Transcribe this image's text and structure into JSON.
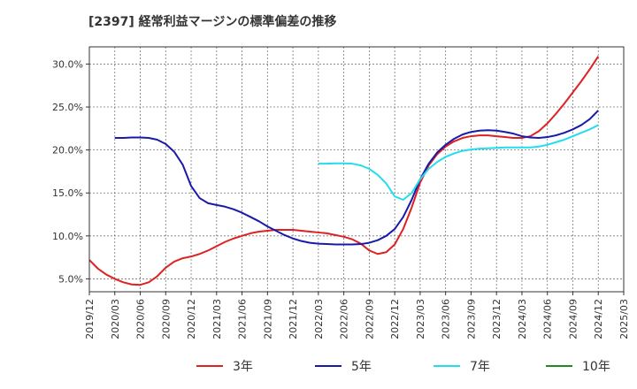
{
  "chart_data": {
    "type": "line",
    "title": "[2397]  経常利益マージンの標準偏差の推移",
    "xlabel": "",
    "ylabel": "",
    "x_range": [
      "2019/12",
      "2025/03"
    ],
    "ylim": [
      3.5,
      32.0
    ],
    "y_ticks": [
      5.0,
      10.0,
      15.0,
      20.0,
      25.0,
      30.0
    ],
    "y_tick_labels": [
      "5.0%",
      "10.0%",
      "15.0%",
      "20.0%",
      "25.0%",
      "30.0%"
    ],
    "x_tick_labels": [
      "2019/12",
      "2020/03",
      "2020/06",
      "2020/09",
      "2020/12",
      "2021/03",
      "2021/06",
      "2021/09",
      "2021/12",
      "2022/03",
      "2022/06",
      "2022/09",
      "2022/12",
      "2023/03",
      "2023/06",
      "2023/09",
      "2023/12",
      "2024/03",
      "2024/06",
      "2024/09",
      "2024/12",
      "2025/03"
    ],
    "grid": true,
    "legend_position": "bottom",
    "series": [
      {
        "name": "3年",
        "color": "#dd2222",
        "points": [
          [
            "2019/12",
            7.2
          ],
          [
            "2020/01",
            6.2
          ],
          [
            "2020/02",
            5.5
          ],
          [
            "2020/03",
            5.0
          ],
          [
            "2020/04",
            4.6
          ],
          [
            "2020/05",
            4.35
          ],
          [
            "2020/06",
            4.3
          ],
          [
            "2020/07",
            4.6
          ],
          [
            "2020/08",
            5.3
          ],
          [
            "2020/09",
            6.3
          ],
          [
            "2020/10",
            7.0
          ],
          [
            "2020/11",
            7.4
          ],
          [
            "2020/12",
            7.6
          ],
          [
            "2021/01",
            7.9
          ],
          [
            "2021/02",
            8.3
          ],
          [
            "2021/03",
            8.8
          ],
          [
            "2021/04",
            9.3
          ],
          [
            "2021/05",
            9.7
          ],
          [
            "2021/06",
            10.0
          ],
          [
            "2021/07",
            10.3
          ],
          [
            "2021/08",
            10.5
          ],
          [
            "2021/09",
            10.6
          ],
          [
            "2021/10",
            10.7
          ],
          [
            "2021/11",
            10.7
          ],
          [
            "2021/12",
            10.7
          ],
          [
            "2022/01",
            10.6
          ],
          [
            "2022/02",
            10.5
          ],
          [
            "2022/03",
            10.4
          ],
          [
            "2022/04",
            10.3
          ],
          [
            "2022/05",
            10.1
          ],
          [
            "2022/06",
            9.9
          ],
          [
            "2022/07",
            9.6
          ],
          [
            "2022/08",
            9.1
          ],
          [
            "2022/09",
            8.3
          ],
          [
            "2022/10",
            7.9
          ],
          [
            "2022/11",
            8.1
          ],
          [
            "2022/12",
            9.0
          ],
          [
            "2023/01",
            10.8
          ],
          [
            "2023/02",
            13.3
          ],
          [
            "2023/03",
            16.2
          ],
          [
            "2023/04",
            18.2
          ],
          [
            "2023/05",
            19.5
          ],
          [
            "2023/06",
            20.4
          ],
          [
            "2023/07",
            21.0
          ],
          [
            "2023/08",
            21.4
          ],
          [
            "2023/09",
            21.6
          ],
          [
            "2023/10",
            21.7
          ],
          [
            "2023/11",
            21.7
          ],
          [
            "2023/12",
            21.6
          ],
          [
            "2024/01",
            21.5
          ],
          [
            "2024/02",
            21.4
          ],
          [
            "2024/03",
            21.4
          ],
          [
            "2024/04",
            21.6
          ],
          [
            "2024/05",
            22.2
          ],
          [
            "2024/06",
            23.1
          ],
          [
            "2024/07",
            24.2
          ],
          [
            "2024/08",
            25.4
          ],
          [
            "2024/09",
            26.7
          ],
          [
            "2024/10",
            28.0
          ],
          [
            "2024/11",
            29.4
          ],
          [
            "2024/12",
            30.9
          ]
        ]
      },
      {
        "name": "5年",
        "color": "#1a1aaa",
        "points": [
          [
            "2020/03",
            21.4
          ],
          [
            "2020/04",
            21.4
          ],
          [
            "2020/05",
            21.45
          ],
          [
            "2020/06",
            21.45
          ],
          [
            "2020/07",
            21.4
          ],
          [
            "2020/08",
            21.2
          ],
          [
            "2020/09",
            20.7
          ],
          [
            "2020/10",
            19.8
          ],
          [
            "2020/11",
            18.3
          ],
          [
            "2020/12",
            15.8
          ],
          [
            "2021/01",
            14.4
          ],
          [
            "2021/02",
            13.8
          ],
          [
            "2021/03",
            13.6
          ],
          [
            "2021/04",
            13.4
          ],
          [
            "2021/05",
            13.1
          ],
          [
            "2021/06",
            12.7
          ],
          [
            "2021/07",
            12.2
          ],
          [
            "2021/08",
            11.7
          ],
          [
            "2021/09",
            11.1
          ],
          [
            "2021/10",
            10.6
          ],
          [
            "2021/11",
            10.1
          ],
          [
            "2021/12",
            9.7
          ],
          [
            "2022/01",
            9.4
          ],
          [
            "2022/02",
            9.2
          ],
          [
            "2022/03",
            9.1
          ],
          [
            "2022/04",
            9.05
          ],
          [
            "2022/05",
            9.0
          ],
          [
            "2022/06",
            9.0
          ],
          [
            "2022/07",
            9.0
          ],
          [
            "2022/08",
            9.05
          ],
          [
            "2022/09",
            9.2
          ],
          [
            "2022/10",
            9.5
          ],
          [
            "2022/11",
            10.0
          ],
          [
            "2022/12",
            10.8
          ],
          [
            "2023/01",
            12.2
          ],
          [
            "2023/02",
            14.2
          ],
          [
            "2023/03",
            16.6
          ],
          [
            "2023/04",
            18.4
          ],
          [
            "2023/05",
            19.7
          ],
          [
            "2023/06",
            20.6
          ],
          [
            "2023/07",
            21.3
          ],
          [
            "2023/08",
            21.8
          ],
          [
            "2023/09",
            22.1
          ],
          [
            "2023/10",
            22.25
          ],
          [
            "2023/11",
            22.3
          ],
          [
            "2023/12",
            22.25
          ],
          [
            "2024/01",
            22.1
          ],
          [
            "2024/02",
            21.9
          ],
          [
            "2024/03",
            21.6
          ],
          [
            "2024/04",
            21.45
          ],
          [
            "2024/05",
            21.4
          ],
          [
            "2024/06",
            21.5
          ],
          [
            "2024/07",
            21.7
          ],
          [
            "2024/08",
            22.0
          ],
          [
            "2024/09",
            22.4
          ],
          [
            "2024/10",
            22.9
          ],
          [
            "2024/11",
            23.6
          ],
          [
            "2024/12",
            24.6
          ]
        ]
      },
      {
        "name": "7年",
        "color": "#22ddee",
        "points": [
          [
            "2022/03",
            18.4
          ],
          [
            "2022/04",
            18.4
          ],
          [
            "2022/05",
            18.45
          ],
          [
            "2022/06",
            18.45
          ],
          [
            "2022/07",
            18.4
          ],
          [
            "2022/08",
            18.2
          ],
          [
            "2022/09",
            17.8
          ],
          [
            "2022/10",
            17.1
          ],
          [
            "2022/11",
            16.1
          ],
          [
            "2022/12",
            14.6
          ],
          [
            "2023/01",
            14.2
          ],
          [
            "2023/02",
            15.0
          ],
          [
            "2023/03",
            16.6
          ],
          [
            "2023/04",
            17.8
          ],
          [
            "2023/05",
            18.6
          ],
          [
            "2023/06",
            19.2
          ],
          [
            "2023/07",
            19.6
          ],
          [
            "2023/08",
            19.9
          ],
          [
            "2023/09",
            20.05
          ],
          [
            "2023/10",
            20.15
          ],
          [
            "2023/11",
            20.2
          ],
          [
            "2023/12",
            20.25
          ],
          [
            "2024/01",
            20.3
          ],
          [
            "2024/02",
            20.3
          ],
          [
            "2024/03",
            20.3
          ],
          [
            "2024/04",
            20.3
          ],
          [
            "2024/05",
            20.4
          ],
          [
            "2024/06",
            20.6
          ],
          [
            "2024/07",
            20.9
          ],
          [
            "2024/08",
            21.2
          ],
          [
            "2024/09",
            21.6
          ],
          [
            "2024/10",
            22.0
          ],
          [
            "2024/11",
            22.4
          ],
          [
            "2024/12",
            22.9
          ]
        ]
      },
      {
        "name": "10年",
        "color": "#228822",
        "points": []
      }
    ]
  }
}
